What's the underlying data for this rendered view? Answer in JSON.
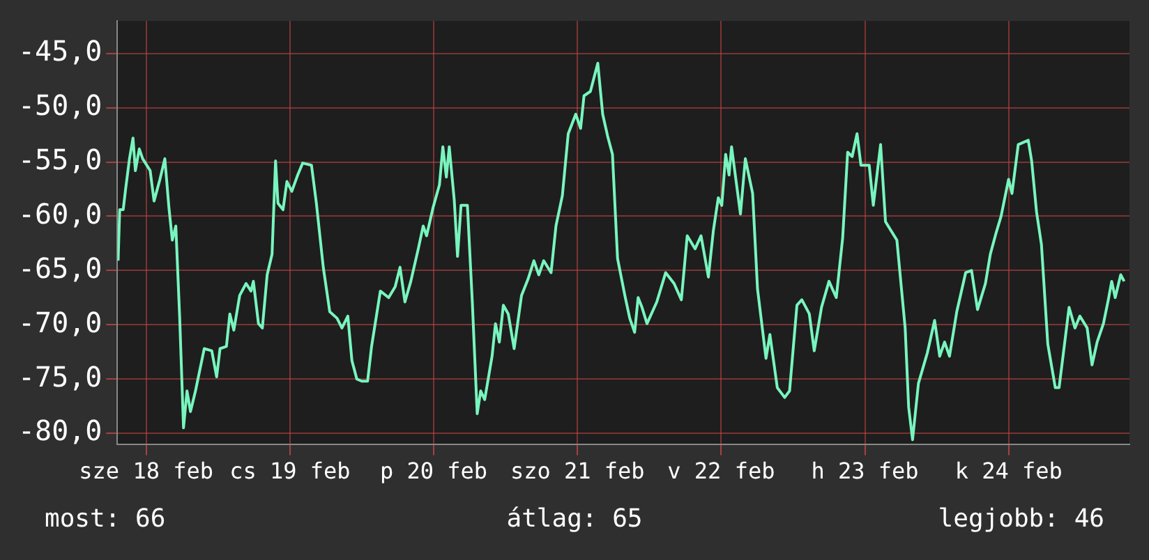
{
  "chart_data": {
    "type": "line",
    "color": "#78f5be",
    "grid": true,
    "legend": false,
    "marker": "none",
    "line_style": "solid",
    "x": [
      "--02-17T19:19",
      "--02-17T19:35",
      "--02-17T20:10",
      "--02-17T20:34",
      "--02-17T21:13",
      "--02-17T21:48",
      "--02-17T22:12",
      "--02-17T22:51",
      "--02-17T23:25",
      "--02-18T00:40",
      "--02-18T01:19",
      "--02-18T02:18",
      "--02-18T03:07",
      "--02-18T03:48",
      "--02-18T04:22",
      "--02-18T04:57",
      "--02-18T05:36",
      "--02-18T06:14",
      "--02-18T06:49",
      "--02-18T07:24",
      "--02-18T08:14",
      "--02-18T09:42",
      "--02-18T10:57",
      "--02-18T11:46",
      "--02-18T12:20",
      "--02-18T13:24",
      "--02-18T13:58",
      "--02-18T14:38",
      "--02-18T15:37",
      "--02-18T16:41",
      "--02-18T17:30",
      "--02-18T17:54",
      "--02-18T18:45",
      "--02-18T19:24",
      "--02-18T20:12",
      "--02-18T21:01",
      "--02-18T21:36",
      "--02-18T22:00",
      "--02-18T22:51",
      "--02-18T23:30",
      "--02-19T00:19",
      "--02-19T01:18",
      "--02-19T02:08",
      "--02-19T03:36",
      "--02-19T04:25",
      "--02-19T05:34",
      "--02-19T06:39",
      "--02-19T07:52",
      "--02-19T08:41",
      "--02-19T09:40",
      "--02-19T10:21",
      "--02-19T11:10",
      "--02-19T11:59",
      "--02-19T12:58",
      "--02-19T13:38",
      "--02-19T15:06",
      "--02-19T16:29",
      "--02-19T17:34",
      "--02-19T18:23",
      "--02-19T19:12",
      "--02-19T20:11",
      "--02-19T21:26",
      "--02-19T22:15",
      "--02-19T22:49",
      "--02-19T23:54",
      "--02-20T00:58",
      "--02-20T01:32",
      "--02-20T02:07",
      "--02-20T02:36",
      "--02-20T03:26",
      "--02-20T03:59",
      "--02-20T04:34",
      "--02-20T05:38",
      "--02-20T06:27",
      "--02-20T07:16",
      "--02-20T07:51",
      "--02-20T08:31",
      "--02-20T09:45",
      "--02-20T10:19",
      "--02-20T10:58",
      "--02-20T11:38",
      "--02-20T12:27",
      "--02-20T13:26",
      "--02-20T14:40",
      "--02-20T15:45",
      "--02-20T16:44",
      "--02-20T17:33",
      "--02-20T18:22",
      "--02-20T19:36",
      "--02-20T20:25",
      "--02-20T21:29",
      "--02-20T22:28",
      "--02-20T23:43",
      "--02-21T00:32",
      "--02-21T01:06",
      "--02-21T02:10",
      "--02-21T03:24",
      "--02-21T04:13",
      "--02-21T05:02",
      "--02-21T05:51",
      "--02-21T06:42",
      "--02-21T07:55",
      "--02-21T08:44",
      "--02-21T09:33",
      "--02-21T10:08",
      "--02-21T10:47",
      "--02-21T11:37",
      "--02-21T13:15",
      "--02-21T14:44",
      "--02-21T16:08",
      "--02-21T17:21",
      "--02-21T18:20",
      "--02-21T19:39",
      "--02-21T20:38",
      "--02-21T21:52",
      "--02-21T22:42",
      "--02-21T23:31",
      "--02-22T00:06",
      "--02-22T00:45",
      "--02-22T01:19",
      "--02-22T01:44",
      "--02-22T03:13",
      "--02-22T04:02",
      "--02-22T05:15",
      "--02-22T06:04",
      "--02-22T07:29",
      "--02-22T08:08",
      "--02-22T09:22",
      "--02-22T10:36",
      "--02-22T11:25",
      "--02-22T12:39",
      "--02-22T13:28",
      "--02-22T14:43",
      "--02-22T15:32",
      "--02-22T16:45",
      "--02-22T18:00",
      "--02-22T19:13",
      "--02-22T20:17",
      "--02-22T21:07",
      "--02-22T21:52",
      "--02-22T22:41",
      "--02-22T23:20",
      "--02-23T00:43",
      "--02-23T01:24",
      "--02-23T02:37",
      "--02-23T03:26",
      "--02-23T05:20",
      "--02-23T06:43",
      "--02-23T07:18",
      "--02-23T07:57",
      "--02-23T08:56",
      "--02-23T10:25",
      "--02-23T11:38",
      "--02-23T12:29",
      "--02-23T13:18",
      "--02-23T14:07",
      "--02-23T15:20",
      "--02-23T16:49",
      "--02-23T17:48",
      "--02-23T18:48",
      "--02-23T20:07",
      "--02-23T20:56",
      "--02-23T21:55",
      "--02-23T22:44",
      "--02-23T23:59",
      "--02-24T00:33",
      "--02-24T01:36",
      "--02-24T03:16",
      "--02-24T03:50",
      "--02-24T04:39",
      "--02-24T05:28",
      "--02-24T06:32",
      "--02-24T07:47",
      "--02-24T08:25",
      "--02-24T10:05",
      "--02-24T11:04",
      "--02-24T11:53",
      "--02-24T13:06",
      "--02-24T13:55",
      "--02-24T14:46",
      "--02-24T15:49",
      "--02-24T16:38",
      "--02-24T17:12",
      "--02-24T17:47",
      "--02-24T18:42",
      "--02-24T19:17"
    ],
    "values": [
      -64.1,
      -59.4,
      -59.4,
      -57.5,
      -54.7,
      -52.8,
      -55.8,
      -53.8,
      -54.7,
      -55.8,
      -58.6,
      -56.6,
      -54.7,
      -59.2,
      -62.2,
      -60.9,
      -69.4,
      -79.5,
      -76.1,
      -78.0,
      -76.1,
      -72.2,
      -72.4,
      -74.8,
      -72.2,
      -72.0,
      -69.0,
      -70.5,
      -67.3,
      -66.2,
      -66.9,
      -66.0,
      -69.9,
      -70.3,
      -65.4,
      -63.5,
      -54.9,
      -58.8,
      -59.4,
      -56.8,
      -57.7,
      -56.2,
      -55.1,
      -55.3,
      -58.8,
      -64.7,
      -68.8,
      -69.4,
      -70.3,
      -69.2,
      -73.3,
      -75.0,
      -75.2,
      -75.2,
      -72.0,
      -66.9,
      -67.5,
      -66.5,
      -64.7,
      -67.9,
      -66.0,
      -63.0,
      -60.9,
      -61.8,
      -59.2,
      -57.1,
      -53.6,
      -56.4,
      -53.6,
      -58.5,
      -63.7,
      -59.0,
      -59.0,
      -67.9,
      -78.2,
      -76.1,
      -76.9,
      -72.9,
      -69.9,
      -71.6,
      -68.2,
      -69.0,
      -72.2,
      -67.3,
      -65.8,
      -64.1,
      -65.4,
      -64.1,
      -65.2,
      -60.9,
      -58.1,
      -52.4,
      -50.6,
      -51.9,
      -48.9,
      -48.5,
      -45.9,
      -50.6,
      -52.6,
      -54.3,
      -63.9,
      -67.3,
      -69.4,
      -70.7,
      -67.5,
      -68.4,
      -69.9,
      -67.9,
      -65.2,
      -66.2,
      -67.7,
      -61.8,
      -63.0,
      -61.8,
      -65.6,
      -61.3,
      -58.3,
      -59.0,
      -54.3,
      -56.2,
      -53.6,
      -59.8,
      -54.7,
      -57.9,
      -66.7,
      -73.1,
      -70.9,
      -75.8,
      -76.7,
      -76.1,
      -68.2,
      -67.7,
      -69.0,
      -72.4,
      -68.4,
      -66.0,
      -67.5,
      -62.0,
      -54.1,
      -54.5,
      -52.4,
      -55.3,
      -55.3,
      -59.0,
      -53.4,
      -60.5,
      -62.2,
      -70.3,
      -77.6,
      -80.6,
      -75.4,
      -72.6,
      -69.6,
      -72.9,
      -71.6,
      -72.9,
      -68.8,
      -65.2,
      -65.0,
      -68.6,
      -66.2,
      -63.5,
      -61.5,
      -60.0,
      -56.6,
      -57.9,
      -53.4,
      -53.0,
      -54.9,
      -59.6,
      -62.6,
      -71.8,
      -75.8,
      -75.8,
      -68.4,
      -70.3,
      -69.2,
      -70.3,
      -73.7,
      -71.6,
      -69.9,
      -67.7,
      -66.0,
      -67.5,
      -65.4,
      -66.0
    ],
    "xlim": [
      "--02-17T19:12",
      "--02-24T20:10"
    ],
    "xticks": [
      {
        "value": "--02-18",
        "label": "sze 18 feb"
      },
      {
        "value": "--02-19",
        "label": "cs 19 feb"
      },
      {
        "value": "--02-20",
        "label": "p 20 feb"
      },
      {
        "value": "--02-21",
        "label": "szo 21 feb"
      },
      {
        "value": "--02-22",
        "label": "v 22 feb"
      },
      {
        "value": "--02-23",
        "label": "h 23 feb"
      },
      {
        "value": "--02-24",
        "label": "k 24 feb"
      }
    ],
    "ylim": [
      -81,
      -42
    ],
    "yticks": [
      {
        "value": -80,
        "label": "-80,0"
      },
      {
        "value": -75,
        "label": "-75,0"
      },
      {
        "value": -70,
        "label": "-70,0"
      },
      {
        "value": -65,
        "label": "-65,0"
      },
      {
        "value": -60,
        "label": "-60,0"
      },
      {
        "value": -55,
        "label": "-55,0"
      },
      {
        "value": -50,
        "label": "-50,0"
      },
      {
        "value": -45,
        "label": "-45,0"
      }
    ],
    "annotations": [
      "most: 66",
      "átlag: 65",
      "legjobb: 46"
    ]
  }
}
